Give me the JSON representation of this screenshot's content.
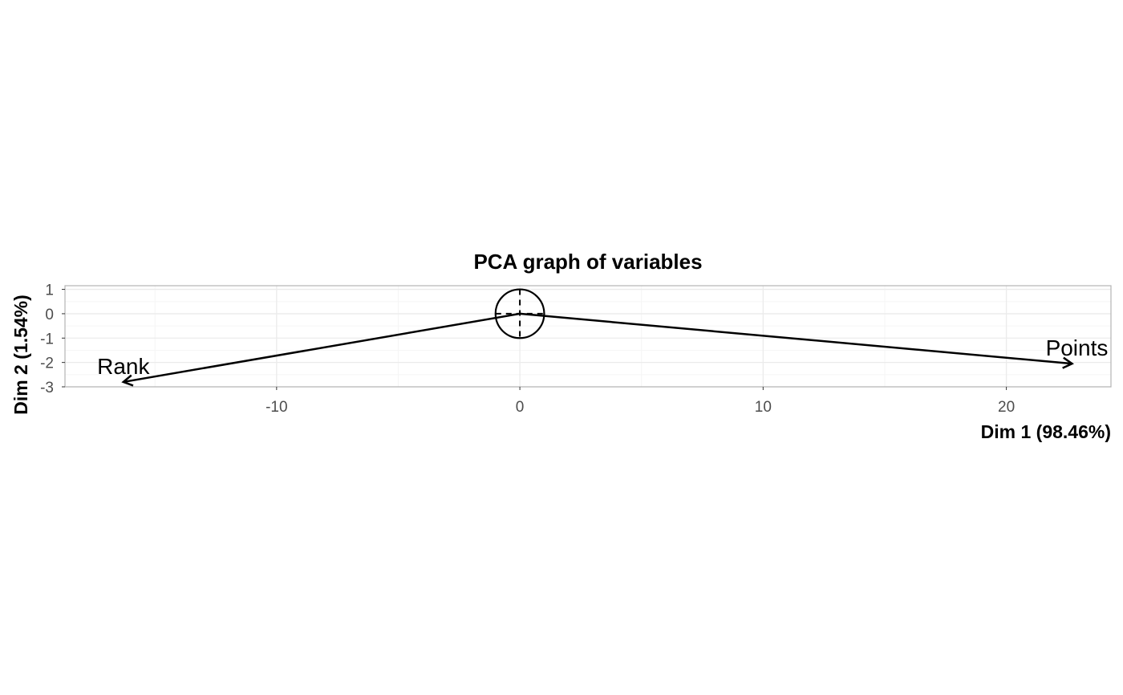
{
  "chart_data": {
    "type": "scatter",
    "title": "PCA graph of variables",
    "xlabel": "Dim 1 (98.46%)",
    "ylabel": "Dim 2 (1.54%)",
    "xlim": [
      -18.7,
      24.3
    ],
    "ylim": [
      -3,
      1.15
    ],
    "x_ticks": [
      -10,
      0,
      10,
      20
    ],
    "x_tick_labels": [
      "-10",
      "0",
      "10",
      "20"
    ],
    "y_ticks": [
      -3,
      -2,
      -1,
      0,
      1
    ],
    "y_tick_labels": [
      "-3",
      "-2",
      "-1",
      "0",
      "1"
    ],
    "grid": true,
    "correlation_circle": {
      "center": [
        0,
        0
      ],
      "radius": 1
    },
    "variables": [
      {
        "name": "Rank",
        "x": -16.3,
        "y": -2.8
      },
      {
        "name": "Points",
        "x": 22.7,
        "y": -2.05
      }
    ],
    "colors": {
      "arrow": "#000000",
      "grid_major": "#ebebeb",
      "grid_minor": "#f5f5f5",
      "panel_border": "#b3b3b3",
      "tick_text": "#4d4d4d"
    }
  }
}
